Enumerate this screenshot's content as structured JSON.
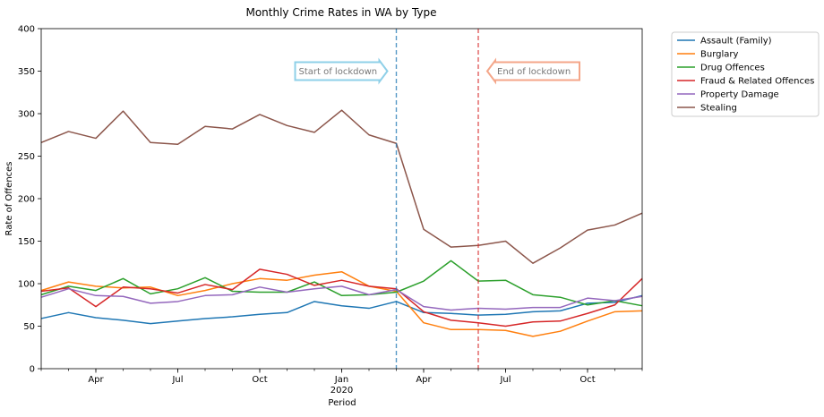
{
  "chart_data": {
    "type": "line",
    "title": "Monthly Crime Rates in WA by Type",
    "xlabel": "Period",
    "ylabel": "Rate of Offences",
    "ylim": [
      0,
      400
    ],
    "yticks": [
      "0",
      "50",
      "100",
      "150",
      "200",
      "250",
      "300",
      "350",
      "400"
    ],
    "x_start": "2019-02",
    "x_end": "2020-12",
    "periods": [
      "2019-02",
      "2019-03",
      "2019-04",
      "2019-05",
      "2019-06",
      "2019-07",
      "2019-08",
      "2019-09",
      "2019-10",
      "2019-11",
      "2019-12",
      "2020-01",
      "2020-02",
      "2020-03",
      "2020-04",
      "2020-05",
      "2020-06",
      "2020-07",
      "2020-08",
      "2020-09",
      "2020-10",
      "2020-11",
      "2020-12"
    ],
    "xticks": [
      {
        "period": "2019-04",
        "label": "Apr"
      },
      {
        "period": "2019-07",
        "label": "Jul"
      },
      {
        "period": "2019-10",
        "label": "Oct"
      },
      {
        "period": "2020-01",
        "label": "Jan",
        "sublabel": "2020"
      },
      {
        "period": "2020-04",
        "label": "Apr"
      },
      {
        "period": "2020-07",
        "label": "Jul"
      },
      {
        "period": "2020-10",
        "label": "Oct"
      }
    ],
    "legend_position": "outside-top-right",
    "grid": false,
    "series": [
      {
        "name": "Assault (Family)",
        "color": "#1f77b4",
        "values": [
          59,
          66,
          60,
          57,
          53,
          56,
          59,
          61,
          64,
          66,
          79,
          74,
          71,
          79,
          66,
          65,
          63,
          64,
          67,
          68,
          77,
          78,
          86
        ]
      },
      {
        "name": "Burglary",
        "color": "#ff7f0e",
        "values": [
          92,
          102,
          97,
          95,
          96,
          86,
          92,
          100,
          106,
          104,
          110,
          114,
          97,
          91,
          54,
          46,
          46,
          45,
          38,
          44,
          56,
          67,
          68
        ]
      },
      {
        "name": "Drug Offences",
        "color": "#2ca02c",
        "values": [
          87,
          97,
          92,
          106,
          88,
          94,
          107,
          91,
          90,
          90,
          102,
          86,
          87,
          90,
          103,
          127,
          103,
          104,
          87,
          84,
          75,
          80,
          74
        ]
      },
      {
        "name": "Fraud & Related Offences",
        "color": "#d62728",
        "values": [
          91,
          95,
          73,
          96,
          94,
          89,
          99,
          93,
          117,
          111,
          98,
          104,
          97,
          94,
          67,
          57,
          54,
          50,
          55,
          56,
          65,
          75,
          106
        ]
      },
      {
        "name": "Property Damage",
        "color": "#9467bd",
        "values": [
          84,
          94,
          86,
          85,
          77,
          79,
          86,
          87,
          96,
          90,
          94,
          97,
          87,
          93,
          73,
          69,
          71,
          70,
          72,
          72,
          83,
          80,
          85
        ]
      },
      {
        "name": "Stealing",
        "color": "#8c564b",
        "values": [
          266,
          279,
          271,
          303,
          266,
          264,
          285,
          282,
          299,
          286,
          278,
          304,
          275,
          265,
          164,
          143,
          145,
          150,
          124,
          142,
          163,
          169,
          183
        ]
      }
    ],
    "vlines": [
      {
        "period": "2020-03",
        "color": "#1f77b4",
        "style": "dashed"
      },
      {
        "period": "2020-06",
        "color": "#d62728",
        "style": "dashed"
      }
    ],
    "annotations": [
      {
        "text": "Start of lockdown",
        "arrow": "right",
        "y": 350,
        "color": "#8fd0e8",
        "anchor_period": "2020-03"
      },
      {
        "text": "End of lockdown",
        "arrow": "left",
        "y": 350,
        "color": "#f4a689",
        "anchor_period": "2020-06"
      }
    ]
  }
}
